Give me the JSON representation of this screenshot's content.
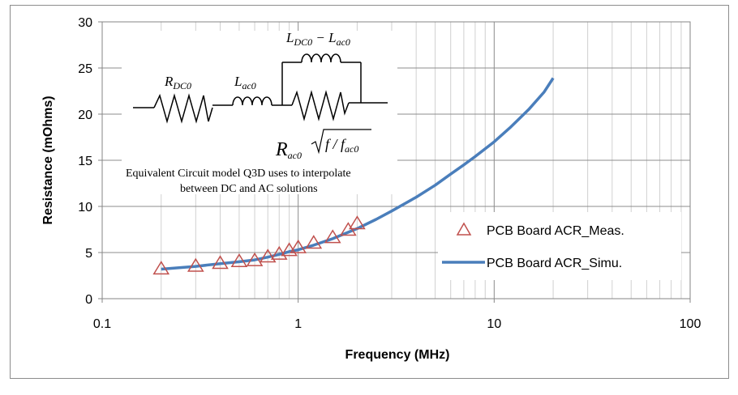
{
  "chart_data": {
    "type": "scatter",
    "xscale": "log",
    "xlim": [
      0.1,
      100
    ],
    "ylim": [
      0,
      30
    ],
    "grid": true,
    "legend_position": "right",
    "xlabel": "Frequency (MHz)",
    "ylabel": "Resistance (mOhms)",
    "x_ticks": [
      "0.1",
      "1",
      "10",
      "100"
    ],
    "y_ticks": [
      "0",
      "5",
      "10",
      "15",
      "20",
      "25",
      "30"
    ],
    "series": [
      {
        "name": "PCB Board ACR_Meas.",
        "marker": "triangle",
        "color": "#c0504d",
        "x": [
          0.2,
          0.3,
          0.4,
          0.5,
          0.6,
          0.7,
          0.8,
          0.9,
          1.0,
          1.2,
          1.5,
          1.8,
          2.0
        ],
        "y": [
          3.2,
          3.5,
          3.8,
          4.0,
          4.1,
          4.5,
          4.8,
          5.2,
          5.5,
          6.0,
          6.6,
          7.4,
          8.1
        ]
      },
      {
        "name": "PCB Board ACR_Simu.",
        "marker": "line",
        "color": "#4f81bd",
        "x": [
          0.2,
          0.3,
          0.4,
          0.5,
          0.6,
          0.7,
          0.8,
          0.9,
          1.0,
          1.2,
          1.5,
          2,
          2.5,
          3,
          4,
          5,
          6,
          7,
          8,
          10,
          12,
          15,
          18,
          20
        ],
        "y": [
          3.2,
          3.5,
          3.8,
          4.0,
          4.2,
          4.5,
          4.8,
          5.1,
          5.3,
          5.8,
          6.5,
          7.6,
          8.6,
          9.5,
          11.0,
          12.3,
          13.5,
          14.5,
          15.4,
          17.0,
          18.5,
          20.5,
          22.4,
          23.9
        ]
      }
    ],
    "annotation": {
      "caption_line1": "Equivalent Circuit model  Q3D uses to interpolate",
      "caption_line2": "between DC and AC solutions",
      "rdc_main": "R",
      "rdc_sub": "DC0",
      "lac_main": "L",
      "lac_sub": "ac0",
      "ltop_main1": "L",
      "ltop_sub1": "DC0",
      "ltop_mid": " − L",
      "ltop_sub2": "ac0",
      "rac_main": "R",
      "rac_sub": "ac0",
      "rac_sqrt_main": "f / f",
      "rac_sqrt_sub": "ac0"
    }
  }
}
